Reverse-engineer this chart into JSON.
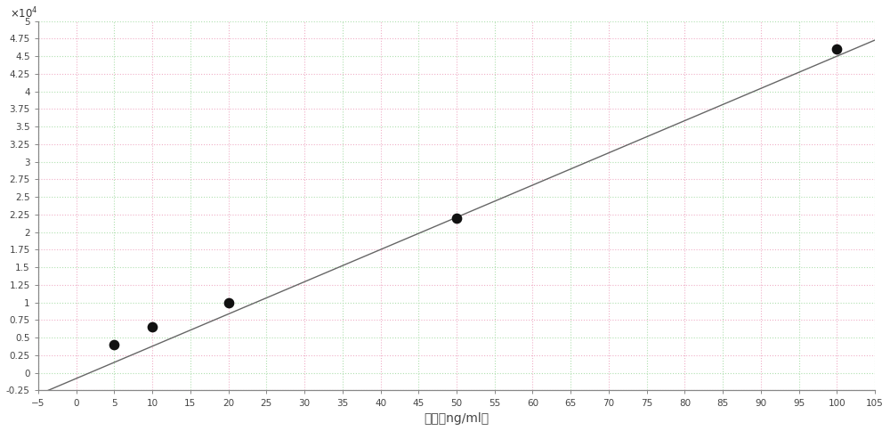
{
  "scatter_x": [
    5,
    10,
    20,
    50,
    100
  ],
  "scatter_y": [
    4000,
    6500,
    10000,
    22000,
    46000
  ],
  "line_slope": 458.0,
  "line_intercept": -800.0,
  "x_min": -5,
  "x_max": 105,
  "y_min": -2500,
  "y_max": 50000,
  "xlabel": "浓度（ng/ml）",
  "xlabel_fontsize": 10,
  "ytick_step": 2500,
  "xtick_step": 5,
  "background_color": "#ffffff",
  "grid_color_1": "#f0b0c8",
  "grid_color_2": "#b0e0b0",
  "line_color": "#666666",
  "scatter_color": "#111111",
  "scatter_size": 55,
  "line_width": 1.0,
  "fig_width": 10.0,
  "fig_height": 4.84,
  "dpi": 100
}
